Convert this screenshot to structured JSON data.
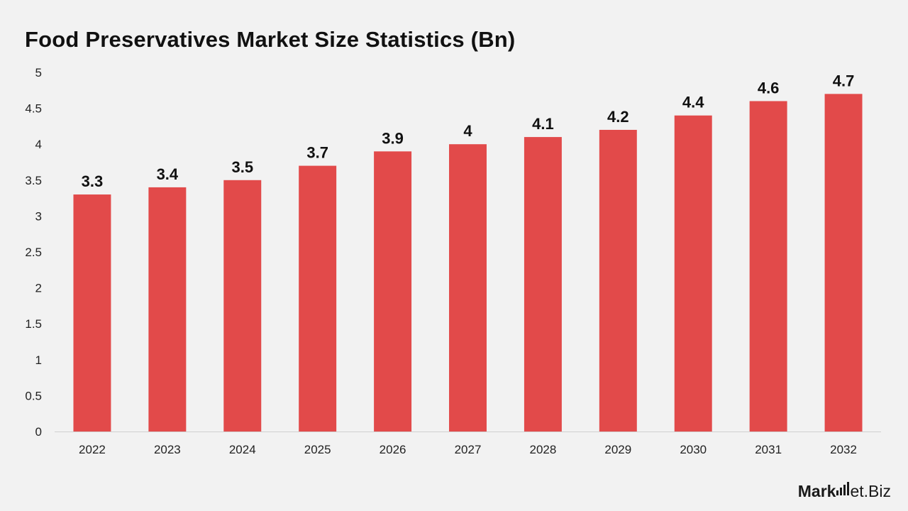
{
  "chart_data": {
    "type": "bar",
    "title": "Food Preservatives Market Size Statistics (Bn)",
    "xlabel": "",
    "ylabel": "",
    "categories": [
      "2022",
      "2023",
      "2024",
      "2025",
      "2026",
      "2027",
      "2028",
      "2029",
      "2030",
      "2031",
      "2032"
    ],
    "values": [
      3.3,
      3.4,
      3.5,
      3.7,
      3.9,
      4,
      4.1,
      4.2,
      4.4,
      4.6,
      4.7
    ],
    "value_labels": [
      "3.3",
      "3.4",
      "3.5",
      "3.7",
      "3.9",
      "4",
      "4.1",
      "4.2",
      "4.4",
      "4.6",
      "4.7"
    ],
    "ylim": [
      0,
      5
    ],
    "yticks": [
      "0",
      "0.5",
      "1",
      "1.5",
      "2",
      "2.5",
      "3",
      "3.5",
      "4",
      "4.5",
      "5"
    ],
    "grid": false,
    "legend": "none",
    "bar_color": "#e24a4a"
  },
  "brand": {
    "left": "Mark",
    "right": "et.Biz"
  }
}
